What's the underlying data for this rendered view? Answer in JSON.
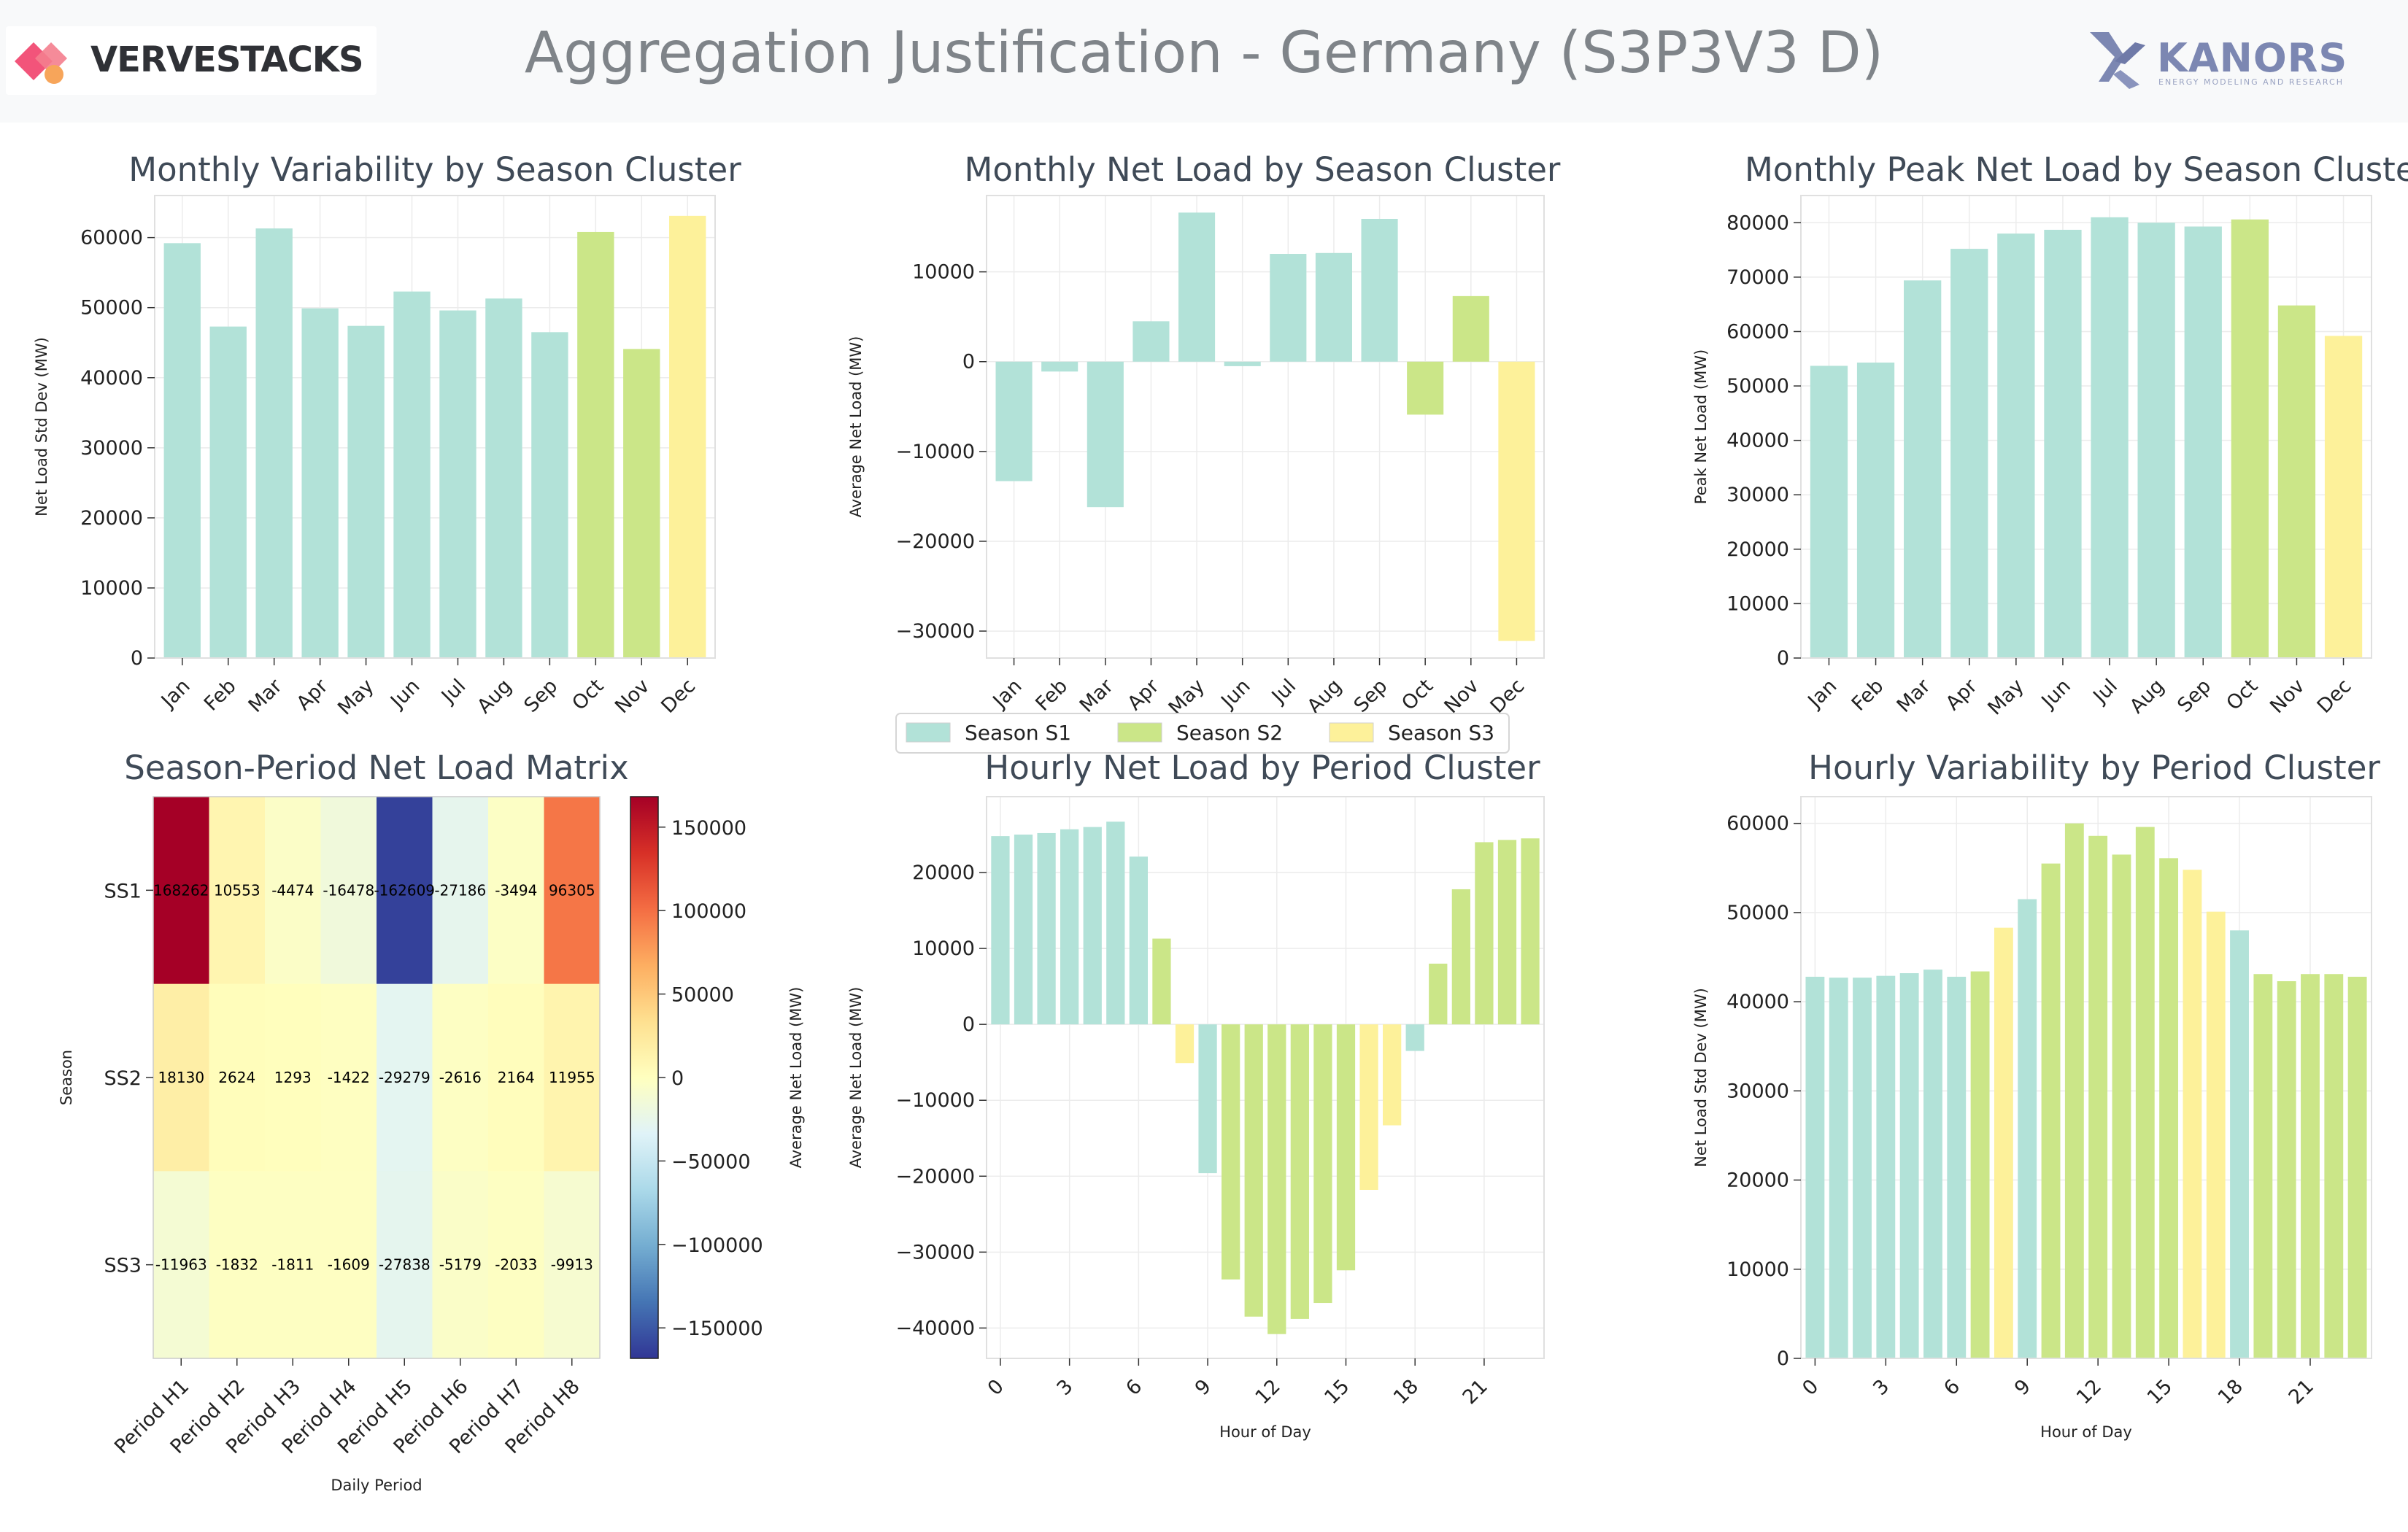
{
  "header": {
    "title": "Aggregation Justification - Germany (S3P3V3 D)",
    "left_brand": "VERVESTACKS",
    "right_brand": "KANORS",
    "right_brand_sub": "ENERGY MODELING AND RESEARCH"
  },
  "colors": {
    "S1": "#b2e2d8",
    "S2": "#cbe688",
    "S3": "#fdf19a"
  },
  "legend": {
    "items": [
      {
        "label": "Season S1",
        "color": "#b2e2d8"
      },
      {
        "label": "Season S2",
        "color": "#cbe688"
      },
      {
        "label": "Season S3",
        "color": "#fdf19a"
      }
    ]
  },
  "chart_data": [
    {
      "id": "variability",
      "type": "bar",
      "title": "Monthly Variability by Season Cluster",
      "xlabel": "",
      "ylabel": "Net Load Std Dev (MW)",
      "categories": [
        "Jan",
        "Feb",
        "Mar",
        "Apr",
        "May",
        "Jun",
        "Jul",
        "Aug",
        "Sep",
        "Oct",
        "Nov",
        "Dec"
      ],
      "values": [
        59200,
        47300,
        61300,
        49900,
        47400,
        52300,
        49600,
        51300,
        46500,
        60800,
        44100,
        63100
      ],
      "color_keys": [
        "S1",
        "S1",
        "S1",
        "S1",
        "S1",
        "S1",
        "S1",
        "S1",
        "S1",
        "S2",
        "S2",
        "S3"
      ],
      "ylim": [
        0,
        66000
      ],
      "yticks": [
        0,
        10000,
        20000,
        30000,
        40000,
        50000,
        60000
      ],
      "grid": true
    },
    {
      "id": "netload",
      "type": "bar",
      "title": "Monthly Net Load by Season Cluster",
      "xlabel": "",
      "ylabel": "Average Net Load (MW)",
      "categories": [
        "Jan",
        "Feb",
        "Mar",
        "Apr",
        "May",
        "Jun",
        "Jul",
        "Aug",
        "Sep",
        "Oct",
        "Nov",
        "Dec"
      ],
      "values": [
        -13300,
        -1100,
        -16200,
        4500,
        16600,
        -500,
        12000,
        12100,
        15900,
        -5900,
        7300,
        -31100
      ],
      "color_keys": [
        "S1",
        "S1",
        "S1",
        "S1",
        "S1",
        "S1",
        "S1",
        "S1",
        "S1",
        "S2",
        "S2",
        "S3"
      ],
      "ylim": [
        -33000,
        18500
      ],
      "yticks": [
        -30000,
        -20000,
        -10000,
        0,
        10000
      ],
      "grid": true
    },
    {
      "id": "peak",
      "type": "bar",
      "title": "Monthly Peak Net Load by Season Cluster",
      "xlabel": "",
      "ylabel": "Peak Net Load (MW)",
      "categories": [
        "Jan",
        "Feb",
        "Mar",
        "Apr",
        "May",
        "Jun",
        "Jul",
        "Aug",
        "Sep",
        "Oct",
        "Nov",
        "Dec"
      ],
      "values": [
        53700,
        54300,
        69400,
        75200,
        78000,
        78700,
        81000,
        80000,
        79300,
        80600,
        64800,
        59200
      ],
      "color_keys": [
        "S1",
        "S1",
        "S1",
        "S1",
        "S1",
        "S1",
        "S1",
        "S1",
        "S1",
        "S2",
        "S2",
        "S3"
      ],
      "ylim": [
        0,
        85000
      ],
      "yticks": [
        0,
        10000,
        20000,
        30000,
        40000,
        50000,
        60000,
        70000,
        80000
      ],
      "grid": true
    },
    {
      "id": "matrix",
      "type": "heatmap",
      "title": "Season-Period Net Load Matrix",
      "xlabel": "Daily Period",
      "ylabel": "Season",
      "colorbar_label": "Average Net Load (MW)",
      "x": [
        "Period H1",
        "Period H2",
        "Period H3",
        "Period H4",
        "Period H5",
        "Period H6",
        "Period H7",
        "Period H8"
      ],
      "y": [
        "SS1",
        "SS2",
        "SS3"
      ],
      "values": [
        [
          168262,
          10553,
          -4474,
          -16478,
          -162609,
          -27186,
          -3494,
          96305
        ],
        [
          18130,
          2624,
          1293,
          -1422,
          -29279,
          -2616,
          2164,
          11955
        ],
        [
          -11963,
          -1832,
          -1811,
          -1609,
          -27838,
          -5179,
          -2033,
          -9913
        ]
      ],
      "labels": [
        [
          "168262",
          "10553",
          "-4474",
          "-16478",
          "-162609",
          "-27186",
          "-3494",
          "96305"
        ],
        [
          "18130",
          "2624",
          "1293",
          "-1422",
          "-29279",
          "-2616",
          "2164",
          "11955"
        ],
        [
          "-11963",
          "-1832",
          "-1811",
          "-1609",
          "-27838",
          "-5179",
          "-2033",
          "-9913"
        ]
      ],
      "colorbar_range": [
        -168262,
        168262
      ],
      "colorbar_ticks": [
        150000,
        100000,
        50000,
        0,
        -50000,
        -100000,
        -150000
      ],
      "colorbar_tick_labels": [
        "150000",
        "100000",
        "50000",
        "0",
        "−50000",
        "−100000",
        "−150000"
      ]
    },
    {
      "id": "hourly_netload",
      "type": "bar",
      "title": "Hourly Net Load by Period Cluster",
      "xlabel": "Hour of Day",
      "ylabel": "Average Net Load (MW)",
      "categories": [
        0,
        1,
        2,
        3,
        4,
        5,
        6,
        7,
        8,
        9,
        10,
        11,
        12,
        13,
        14,
        15,
        16,
        17,
        18,
        19,
        20,
        21,
        22,
        23
      ],
      "values": [
        24800,
        25000,
        25200,
        25700,
        26000,
        26700,
        22100,
        11300,
        -5100,
        -19600,
        -33600,
        -38500,
        -40800,
        -38800,
        -36700,
        -32400,
        -21800,
        -13300,
        -3500,
        8000,
        17800,
        24000,
        24300,
        24500
      ],
      "color_keys": [
        "S1",
        "S1",
        "S1",
        "S1",
        "S1",
        "S1",
        "S1",
        "S2",
        "S3",
        "S1",
        "S2",
        "S2",
        "S2",
        "S2",
        "S2",
        "S2",
        "S3",
        "S3",
        "S1",
        "S2",
        "S2",
        "S2",
        "S2",
        "S2"
      ],
      "ylim": [
        -44000,
        30000
      ],
      "yticks": [
        -40000,
        -30000,
        -20000,
        -10000,
        0,
        10000,
        20000
      ],
      "xtick_labels": [
        "0",
        "3",
        "6",
        "9",
        "12",
        "15",
        "18",
        "21"
      ],
      "grid": true
    },
    {
      "id": "hourly_variability",
      "type": "bar",
      "title": "Hourly Variability by Period Cluster",
      "xlabel": "Hour of Day",
      "ylabel": "Net Load Std Dev (MW)",
      "categories": [
        0,
        1,
        2,
        3,
        4,
        5,
        6,
        7,
        8,
        9,
        10,
        11,
        12,
        13,
        14,
        15,
        16,
        17,
        18,
        19,
        20,
        21,
        22,
        23
      ],
      "values": [
        42800,
        42700,
        42700,
        42900,
        43200,
        43600,
        42800,
        43400,
        48300,
        51500,
        55500,
        60000,
        58600,
        56500,
        59600,
        56100,
        54800,
        50100,
        48000,
        43100,
        42300,
        43100,
        43100,
        42800
      ],
      "color_keys": [
        "S1",
        "S1",
        "S1",
        "S1",
        "S1",
        "S1",
        "S1",
        "S2",
        "S3",
        "S1",
        "S2",
        "S2",
        "S2",
        "S2",
        "S2",
        "S2",
        "S3",
        "S3",
        "S1",
        "S2",
        "S2",
        "S2",
        "S2",
        "S2"
      ],
      "ylim": [
        0,
        63000
      ],
      "yticks": [
        0,
        10000,
        20000,
        30000,
        40000,
        50000,
        60000
      ],
      "xtick_labels": [
        "0",
        "3",
        "6",
        "9",
        "12",
        "15",
        "18",
        "21"
      ],
      "grid": true
    }
  ]
}
